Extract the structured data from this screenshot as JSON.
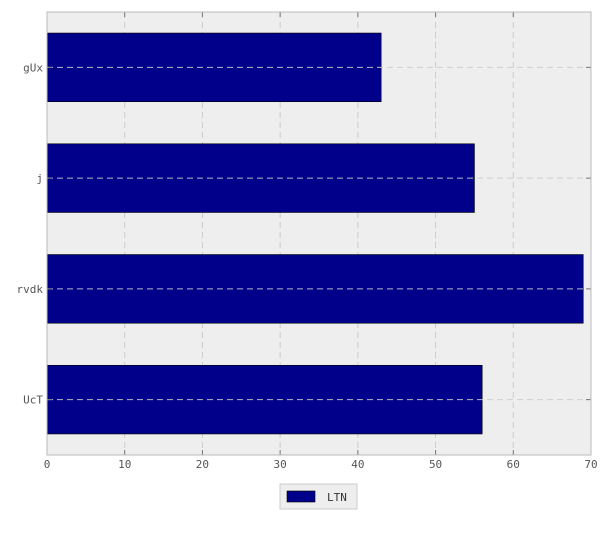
{
  "chart_data": {
    "type": "bar",
    "orientation": "horizontal",
    "categories": [
      "gUx",
      "j",
      "rvdk",
      "UcT"
    ],
    "series": [
      {
        "name": "LTN",
        "values": [
          43,
          55,
          69,
          56
        ]
      }
    ],
    "title": "",
    "xlabel": "",
    "ylabel": "",
    "xlim": [
      0,
      70
    ],
    "xticks": [
      0,
      10,
      20,
      30,
      40,
      50,
      60,
      70
    ],
    "grid": true,
    "legend": "bottom-center",
    "colors": {
      "bar": "#00008b",
      "plot_background": "#eeeeee",
      "grid": "#cccccc"
    }
  }
}
